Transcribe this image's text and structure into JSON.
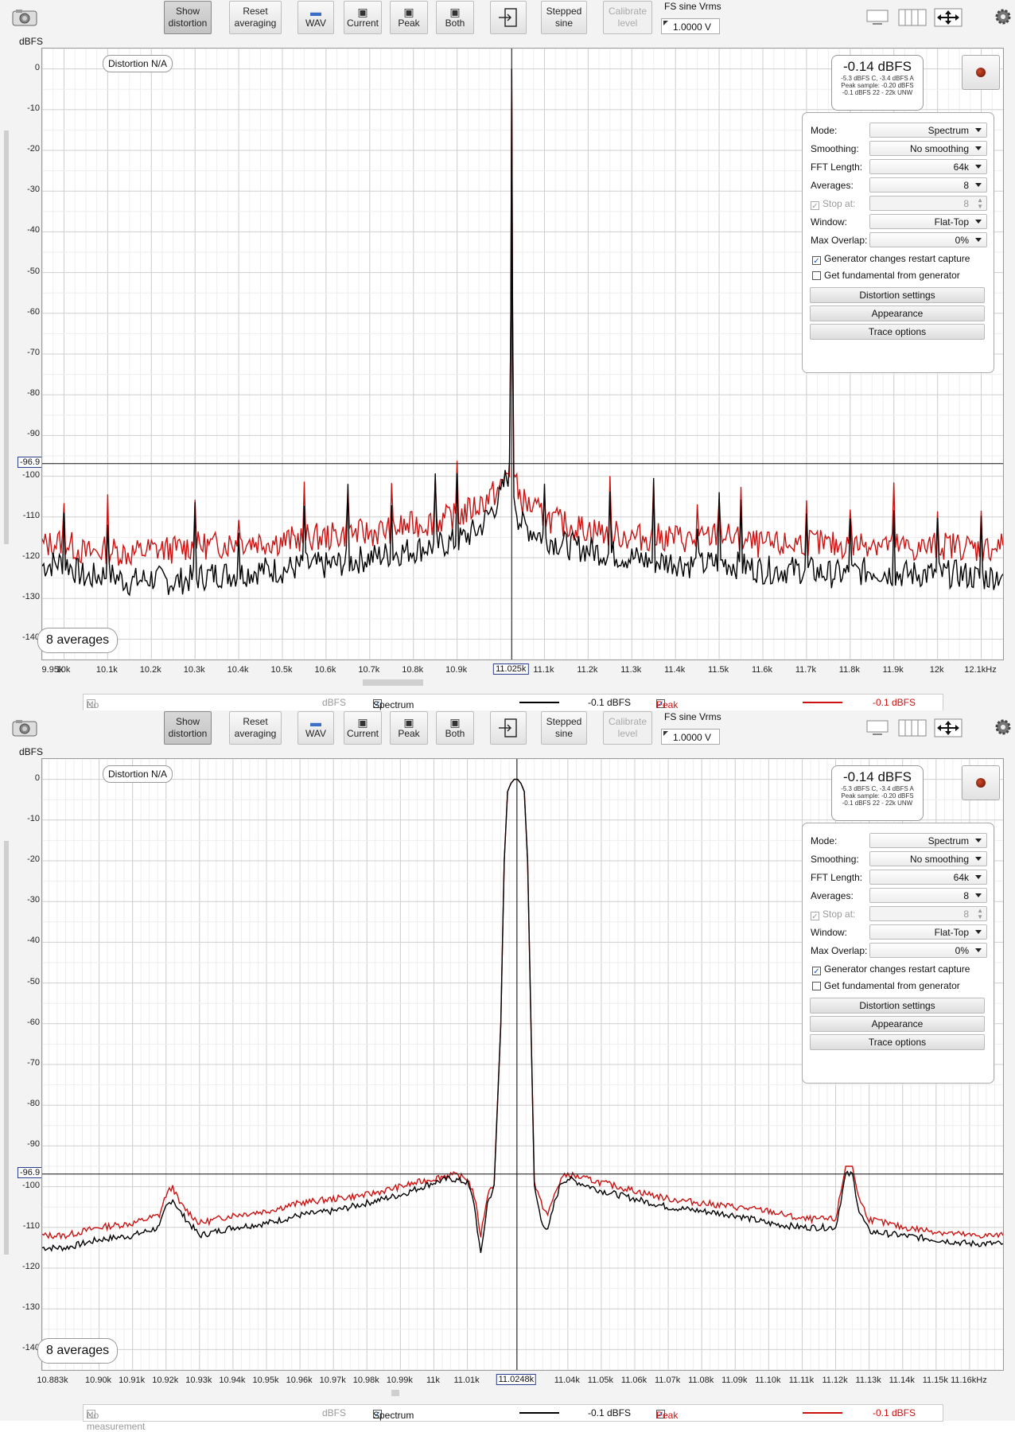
{
  "panes": [
    {
      "id": "p1",
      "toolbar": {
        "show_distortion": [
          "Show",
          "distortion"
        ],
        "reset_averaging": [
          "Reset",
          "averaging"
        ],
        "wav": "WAV",
        "current": "Current",
        "peak": "Peak",
        "both": "Both",
        "stepped_sine": [
          "Stepped",
          "sine"
        ],
        "calibrate_level": [
          "Calibrate",
          "level"
        ],
        "fs_label": "FS sine Vrms",
        "fs_value": "1.0000 V"
      },
      "y_unit": "dBFS",
      "distortion_badge": "Distortion N/A",
      "averages_badge": "8 averages",
      "readout": {
        "main": "-0.14 dBFS",
        "lines": [
          "-5.3 dBFS C, -3.4 dBFS A",
          "Peak sample: -0.20 dBFS",
          "-0.1 dBFS 22 - 22k UNW"
        ]
      },
      "cursor": {
        "x_label": "11.025k",
        "y_label": "-96.9"
      },
      "settings": {
        "mode_label": "Mode:",
        "mode_value": "Spectrum",
        "smoothing_label": "Smoothing:",
        "smoothing_value": "No smoothing",
        "fft_label": "FFT Length:",
        "fft_value": "64k",
        "averages_label": "Averages:",
        "averages_value": "8",
        "stop_label": "Stop at:",
        "stop_value": "8",
        "window_label": "Window:",
        "window_value": "Flat-Top",
        "overlap_label": "Max Overlap:",
        "overlap_value": "0%",
        "gen_restart": "Generator changes restart capture",
        "fundamental": "Get fundamental from generator",
        "distortion_settings": "Distortion settings",
        "appearance": "Appearance",
        "trace_options": "Trace options"
      },
      "legend": {
        "no_measurement": "No measurement",
        "unit": "dBFS",
        "spectrum": "Spectrum",
        "spectrum_value": "-0.1 dBFS",
        "peak": "Peak",
        "peak_value": "-0.1 dBFS"
      }
    },
    {
      "id": "p2",
      "toolbar": {
        "show_distortion": [
          "Show",
          "distortion"
        ],
        "reset_averaging": [
          "Reset",
          "averaging"
        ],
        "wav": "WAV",
        "current": "Current",
        "peak": "Peak",
        "both": "Both",
        "stepped_sine": [
          "Stepped",
          "sine"
        ],
        "calibrate_level": [
          "Calibrate",
          "level"
        ],
        "fs_label": "FS sine Vrms",
        "fs_value": "1.0000 V"
      },
      "y_unit": "dBFS",
      "distortion_badge": "Distortion N/A",
      "averages_badge": "8 averages",
      "readout": {
        "main": "-0.14 dBFS",
        "lines": [
          "-5.3 dBFS C, -3.4 dBFS A",
          "Peak sample: -0.20 dBFS",
          "-0.1 dBFS 22 - 22k UNW"
        ]
      },
      "cursor": {
        "x_label": "11.0248k",
        "y_label": "-96.9"
      },
      "settings": {
        "mode_label": "Mode:",
        "mode_value": "Spectrum",
        "smoothing_label": "Smoothing:",
        "smoothing_value": "No smoothing",
        "fft_label": "FFT Length:",
        "fft_value": "64k",
        "averages_label": "Averages:",
        "averages_value": "8",
        "stop_label": "Stop at:",
        "stop_value": "8",
        "window_label": "Window:",
        "window_value": "Flat-Top",
        "overlap_label": "Max Overlap:",
        "overlap_value": "0%",
        "gen_restart": "Generator changes restart capture",
        "fundamental": "Get fundamental from generator",
        "distortion_settings": "Distortion settings",
        "appearance": "Appearance",
        "trace_options": "Trace options"
      },
      "legend": {
        "no_measurement": "No measurement",
        "unit": "dBFS",
        "spectrum": "Spectrum",
        "spectrum_value": "-0.1 dBFS",
        "peak": "Peak",
        "peak_value": "-0.1 dBFS"
      }
    }
  ],
  "chart_data": [
    {
      "type": "line",
      "ylabel": "dBFS",
      "ylim": [
        -145,
        5
      ],
      "xlim": [
        9950,
        12150
      ],
      "y_ticks": [
        "0",
        "-10",
        "-20",
        "-30",
        "-40",
        "-50",
        "-60",
        "-70",
        "-80",
        "-90",
        "-100",
        "-110",
        "-120",
        "-130",
        "-140"
      ],
      "x_tick_labels": [
        "9.95k",
        "10k",
        "10.1k",
        "10.2k",
        "10.3k",
        "10.4k",
        "10.5k",
        "10.6k",
        "10.7k",
        "10.8k",
        "10.9k",
        "11.025k",
        "11.1k",
        "11.2k",
        "11.3k",
        "11.4k",
        "11.5k",
        "11.6k",
        "11.7k",
        "11.8k",
        "11.9k",
        "12k",
        "12.1kHz"
      ],
      "x_tick_values": [
        9950,
        10000,
        10100,
        10200,
        10300,
        10400,
        10500,
        10600,
        10700,
        10800,
        10900,
        11025,
        11100,
        11200,
        11300,
        11400,
        11500,
        11600,
        11700,
        11800,
        11900,
        12000,
        12100
      ],
      "grid": true,
      "series": [
        {
          "name": "Spectrum",
          "color": "#000000",
          "x": [
            9950,
            10000,
            10050,
            10100,
            10150,
            10200,
            10250,
            10300,
            10350,
            10400,
            10450,
            10500,
            10550,
            10600,
            10650,
            10700,
            10750,
            10800,
            10850,
            10900,
            10950,
            11000,
            11010,
            11020,
            11023,
            11025,
            11027,
            11030,
            11040,
            11050,
            11100,
            11150,
            11200,
            11250,
            11300,
            11350,
            11400,
            11450,
            11500,
            11550,
            11600,
            11650,
            11700,
            11750,
            11800,
            11850,
            11900,
            11950,
            12000,
            12050,
            12100,
            12150
          ],
          "y": [
            -122,
            -121,
            -125,
            -124,
            -126,
            -125,
            -126,
            -125,
            -124,
            -124,
            -123,
            -123,
            -122,
            -122,
            -121,
            -120,
            -119,
            -118,
            -117,
            -116,
            -113,
            -105,
            -101,
            -99,
            -60,
            0,
            -60,
            -104,
            -110,
            -112,
            -115,
            -117,
            -118,
            -119,
            -120,
            -121,
            -121,
            -122,
            -121,
            -122,
            -123,
            -123,
            -123,
            -124,
            -124,
            -123,
            -124,
            -124,
            -124,
            -124,
            -125,
            -124
          ]
        },
        {
          "name": "Peak",
          "color": "#cc1111",
          "x": [
            9950,
            10000,
            10050,
            10100,
            10150,
            10200,
            10250,
            10300,
            10350,
            10400,
            10450,
            10500,
            10550,
            10600,
            10650,
            10700,
            10750,
            10800,
            10850,
            10900,
            10950,
            11000,
            11010,
            11020,
            11023,
            11025,
            11027,
            11030,
            11040,
            11050,
            11100,
            11150,
            11200,
            11250,
            11300,
            11350,
            11400,
            11450,
            11500,
            11550,
            11600,
            11650,
            11700,
            11750,
            11800,
            11850,
            11900,
            11950,
            12000,
            12050,
            12100,
            12150
          ],
          "y": [
            -117,
            -116,
            -119,
            -118,
            -119,
            -118,
            -118,
            -117,
            -117,
            -116,
            -116,
            -116,
            -115,
            -115,
            -114,
            -114,
            -113,
            -112,
            -111,
            -110,
            -107,
            -103,
            -100,
            -98,
            -60,
            0,
            -60,
            -100,
            -104,
            -106,
            -110,
            -112,
            -113,
            -114,
            -115,
            -115,
            -115,
            -116,
            -114,
            -116,
            -117,
            -117,
            -116,
            -117,
            -117,
            -116,
            -117,
            -118,
            -117,
            -117,
            -118,
            -117
          ]
        }
      ],
      "spikes_x": [
        10000,
        10100,
        10300,
        10400,
        10550,
        10650,
        10750,
        10850,
        10900,
        11100,
        11250,
        11350,
        11450,
        11500,
        11550,
        11700,
        11800,
        11900,
        12000,
        12100
      ]
    },
    {
      "type": "line",
      "ylabel": "dBFS",
      "ylim": [
        -145,
        5
      ],
      "xlim": [
        10883,
        11170
      ],
      "y_ticks": [
        "0",
        "-10",
        "-20",
        "-30",
        "-40",
        "-50",
        "-60",
        "-70",
        "-80",
        "-90",
        "-100",
        "-110",
        "-120",
        "-130",
        "-140"
      ],
      "x_tick_labels": [
        "10.883k",
        "10.90k",
        "10.91k",
        "10.92k",
        "10.93k",
        "10.94k",
        "10.95k",
        "10.96k",
        "10.97k",
        "10.98k",
        "10.99k",
        "11k",
        "11.01k",
        "11.0248k",
        "11.04k",
        "11.05k",
        "11.06k",
        "11.07k",
        "11.08k",
        "11.09k",
        "11.10k",
        "11.11k",
        "11.12k",
        "11.13k",
        "11.14k",
        "11.15k",
        "11.16kHz"
      ],
      "x_tick_values": [
        10883,
        10900,
        10910,
        10920,
        10930,
        10940,
        10950,
        10960,
        10970,
        10980,
        10990,
        11000,
        11010,
        11024.8,
        11040,
        11050,
        11060,
        11070,
        11080,
        11090,
        11100,
        11110,
        11120,
        11130,
        11140,
        11150,
        11160
      ],
      "grid": true,
      "series": [
        {
          "name": "Spectrum",
          "color": "#000000",
          "x": [
            10883,
            10890,
            10900,
            10910,
            10918,
            10920,
            10922,
            10924,
            10930,
            10940,
            10950,
            10960,
            10970,
            10980,
            10990,
            11000,
            11005,
            11010,
            11012,
            11014,
            11016,
            11018,
            11020,
            11021,
            11022,
            11023,
            11024,
            11025,
            11026,
            11027,
            11028,
            11029,
            11030,
            11032,
            11034,
            11036,
            11038,
            11040,
            11050,
            11060,
            11070,
            11080,
            11090,
            11100,
            11110,
            11120,
            11123,
            11125,
            11127,
            11130,
            11140,
            11150,
            11160,
            11170
          ],
          "y": [
            -115,
            -115,
            -113,
            -112,
            -110,
            -105,
            -103,
            -106,
            -112,
            -110,
            -109,
            -107,
            -106,
            -104,
            -102,
            -99,
            -98,
            -99,
            -104,
            -117,
            -104,
            -100,
            -60,
            -20,
            -3,
            -1,
            0,
            0,
            -1,
            -3,
            -20,
            -60,
            -100,
            -108,
            -111,
            -104,
            -99,
            -98,
            -101,
            -103,
            -105,
            -106,
            -107,
            -109,
            -110,
            -110,
            -97,
            -97,
            -106,
            -111,
            -112,
            -113,
            -114,
            -114
          ]
        },
        {
          "name": "Peak",
          "color": "#cc1111",
          "x": [
            10883,
            10890,
            10900,
            10910,
            10918,
            10920,
            10922,
            10924,
            10930,
            10940,
            10950,
            10960,
            10970,
            10980,
            10990,
            11000,
            11005,
            11010,
            11012,
            11014,
            11016,
            11018,
            11020,
            11021,
            11022,
            11023,
            11024,
            11025,
            11026,
            11027,
            11028,
            11029,
            11030,
            11032,
            11034,
            11036,
            11038,
            11040,
            11050,
            11060,
            11070,
            11080,
            11090,
            11100,
            11110,
            11120,
            11123,
            11125,
            11127,
            11130,
            11140,
            11150,
            11160,
            11170
          ],
          "y": [
            -112,
            -112,
            -110,
            -109,
            -107,
            -102,
            -100,
            -104,
            -109,
            -107,
            -106,
            -104,
            -103,
            -102,
            -100,
            -98,
            -97,
            -98,
            -102,
            -112,
            -102,
            -99,
            -60,
            -20,
            -3,
            -1,
            0,
            0,
            -1,
            -3,
            -20,
            -60,
            -99,
            -104,
            -107,
            -102,
            -98,
            -97,
            -99,
            -101,
            -103,
            -104,
            -105,
            -106,
            -108,
            -108,
            -95,
            -95,
            -103,
            -108,
            -110,
            -111,
            -112,
            -112
          ]
        }
      ],
      "spikes_x": []
    }
  ]
}
